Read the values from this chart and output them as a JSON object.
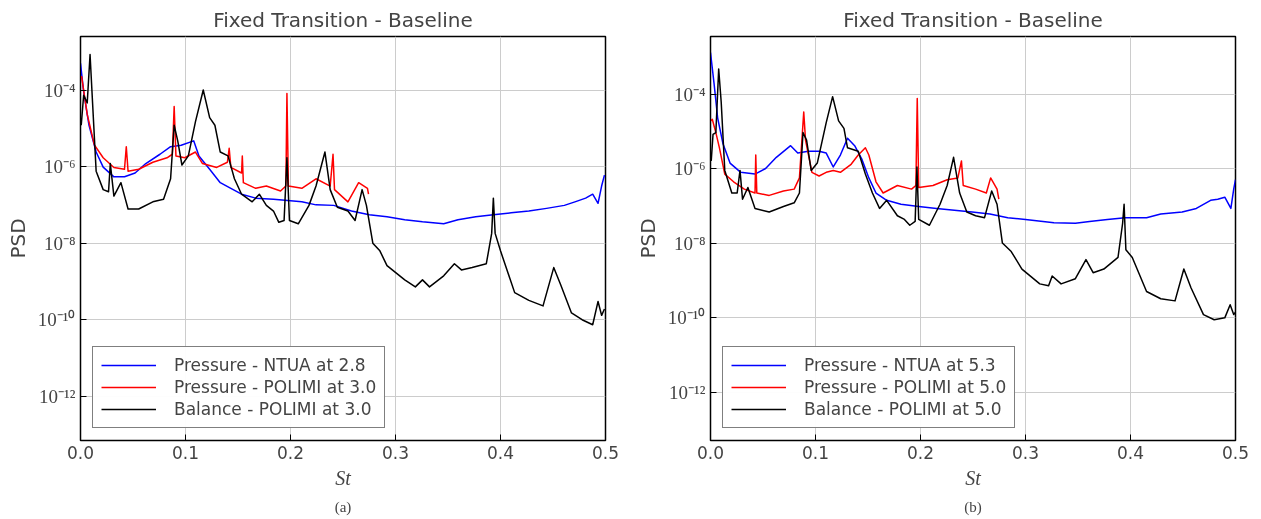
{
  "chart_data": [
    {
      "type": "line",
      "title": "Fixed Transition - Baseline",
      "xlabel": "St",
      "ylabel": "PSD",
      "annotations": [
        "(a)"
      ],
      "log": "y",
      "grid": true,
      "legend": "bottom left",
      "xlim": [
        0,
        0.5
      ],
      "xticks": [
        {
          "value": 0,
          "label": "0.0"
        },
        0.1,
        0.2,
        0.3,
        0.4,
        0.5
      ],
      "ylim": [
        7e-14,
        0.0025
      ],
      "yticks": [
        {
          "value": 1e-12,
          "label": "10⁻¹²"
        },
        {
          "value": 1e-10,
          "label": "10⁻¹⁰"
        },
        {
          "value": 1e-08,
          "label": "10⁻⁸"
        },
        {
          "value": 1e-06,
          "label": "10⁻⁶"
        },
        {
          "value": 0.0001,
          "label": "10⁻⁴"
        }
      ],
      "series": [
        {
          "name": "Pressure - NTUA at 2.8",
          "color": "#0000ff",
          "x": [
            0.0,
            0.003,
            0.0081,
            0.0149,
            0.0216,
            0.0318,
            0.0419,
            0.052,
            0.0622,
            0.0757,
            0.0858,
            0.0959,
            0.1078,
            0.1128,
            0.123,
            0.1331,
            0.1432,
            0.1534,
            0.1669,
            0.1838,
            0.1973,
            0.2108,
            0.2243,
            0.2412,
            0.2581,
            0.275,
            0.2919,
            0.3088,
            0.3257,
            0.3459,
            0.3595,
            0.3764,
            0.3932,
            0.4101,
            0.427,
            0.4439,
            0.4608,
            0.4709,
            0.4811,
            0.4878,
            0.4929,
            0.4963,
            0.499
          ],
          "values": [
            0.0005,
            9.1e-05,
            1.2e-05,
            2.4e-06,
            9.7e-07,
            5.4e-07,
            5.4e-07,
            6.8e-07,
            1.2e-06,
            2.1e-06,
            3.3e-06,
            3.6e-06,
            4.7e-06,
            1.9e-06,
            8.5e-07,
            3.8e-07,
            2.7e-07,
            1.9e-07,
            1.5e-07,
            1.4e-07,
            1.3e-07,
            1.2e-07,
            1e-07,
            9.7e-08,
            6.9e-08,
            5.5e-08,
            4.9e-08,
            4.1e-08,
            3.6e-08,
            3.2e-08,
            4.1e-08,
            4.9e-08,
            5.5e-08,
            6.2e-08,
            6.9e-08,
            8.1e-08,
            9.7e-08,
            1.2e-07,
            1.5e-07,
            1.9e-07,
            1.1e-07,
            3.1e-07,
            6e-07
          ]
        },
        {
          "name": "Pressure - POLIMI at 3.0",
          "color": "#ff0000",
          "x": [
            0.001,
            0.0064,
            0.0132,
            0.0216,
            0.0318,
            0.0419,
            0.0436,
            0.0453,
            0.0554,
            0.0689,
            0.0824,
            0.0875,
            0.0892,
            0.0909,
            0.0993,
            0.1095,
            0.1162,
            0.1297,
            0.1399,
            0.1416,
            0.1432,
            0.1534,
            0.1541,
            0.1551,
            0.1669,
            0.177,
            0.1905,
            0.1956,
            0.1966,
            0.198,
            0.2108,
            0.2243,
            0.2378,
            0.2405,
            0.2419,
            0.2547,
            0.2649,
            0.2733,
            0.2743
          ],
          "values": [
            0.00023,
            2.3e-05,
            3.7e-06,
            1.7e-06,
            9.5e-07,
            8.5e-07,
            3.3e-06,
            7.6e-07,
            8.5e-07,
            1.3e-06,
            1.7e-06,
            2.1e-06,
            3.7e-05,
            1.9e-06,
            1.7e-06,
            2.4e-06,
            1.2e-06,
            9.5e-07,
            1.3e-06,
            3e-06,
            9.5e-07,
            6.8e-07,
            1.9e-06,
            3.8e-07,
            2.7e-07,
            3.1e-07,
            2.3e-07,
            3.1e-07,
            8.1e-05,
            3.1e-07,
            2.7e-07,
            4.8e-07,
            3.1e-07,
            2.1e-06,
            2.5e-07,
            1.2e-07,
            3.8e-07,
            2.7e-07,
            1.9e-07
          ]
        },
        {
          "name": "Balance - POLIMI at 3.0",
          "color": "#000000",
          "x": [
            0.0007,
            0.003,
            0.0064,
            0.0091,
            0.0115,
            0.0149,
            0.0216,
            0.0267,
            0.0284,
            0.0318,
            0.0385,
            0.0453,
            0.0554,
            0.0689,
            0.0791,
            0.0858,
            0.0892,
            0.0926,
            0.0966,
            0.1027,
            0.1095,
            0.1169,
            0.123,
            0.128,
            0.1331,
            0.1405,
            0.1466,
            0.1534,
            0.1635,
            0.1703,
            0.177,
            0.1838,
            0.1889,
            0.1939,
            0.1966,
            0.199,
            0.2074,
            0.2176,
            0.2243,
            0.2328,
            0.2378,
            0.2446,
            0.2547,
            0.2615,
            0.2682,
            0.2723,
            0.2784,
            0.2851,
            0.2919,
            0.3088,
            0.3189,
            0.3257,
            0.3324,
            0.3459,
            0.3561,
            0.3628,
            0.373,
            0.3865,
            0.3916,
            0.3932,
            0.3949,
            0.4,
            0.4135,
            0.427,
            0.4405,
            0.4507,
            0.4574,
            0.4676,
            0.4777,
            0.4878,
            0.4929,
            0.4963,
            0.499
          ],
          "values": [
            1.2e-05,
            7.3e-05,
            4.6e-05,
            0.00085,
            4.6e-05,
            7.6e-07,
            2.5e-07,
            2.2e-07,
            1.2e-06,
            1.7e-07,
            3.8e-07,
            7.8e-08,
            7.8e-08,
            1.2e-07,
            1.4e-07,
            4.8e-07,
            1.2e-05,
            4.7e-06,
            1.1e-06,
            1.9e-06,
            1.5e-05,
            0.0001,
            1.9e-05,
            1.2e-05,
            2.4e-06,
            1.9e-06,
            4.8e-07,
            1.9e-07,
            1.2e-07,
            1.9e-07,
            9.7e-08,
            6.9e-08,
            3.5e-08,
            3.9e-08,
            1.7e-06,
            3.9e-08,
            3.2e-08,
            9.7e-08,
            3.1e-07,
            2.4e-06,
            2.5e-07,
            8.7e-08,
            6.9e-08,
            3.9e-08,
            2.5e-07,
            9.7e-08,
            1e-08,
            6.3e-09,
            2.6e-09,
            1.1e-09,
            7.2e-10,
            1.1e-09,
            7.2e-10,
            1.4e-09,
            2.9e-09,
            2e-09,
            2.3e-09,
            2.9e-09,
            1.8e-08,
            1.5e-07,
            1.8e-08,
            6.3e-09,
            5.1e-10,
            3.2e-10,
            2.3e-10,
            2.3e-09,
            8.1e-10,
            1.5e-10,
            1e-10,
            7.4e-11,
            3e-10,
            1.3e-10,
            1.9e-10
          ]
        }
      ]
    },
    {
      "type": "line",
      "title": "Fixed Transition - Baseline",
      "xlabel": "St",
      "ylabel": "PSD",
      "annotations": [
        "(b)"
      ],
      "log": "y",
      "grid": true,
      "legend": "bottom left",
      "xlim": [
        0,
        0.5
      ],
      "xticks": [
        {
          "value": 0,
          "label": "0.0"
        },
        0.1,
        0.2,
        0.3,
        0.4,
        0.5
      ],
      "ylim": [
        5e-14,
        0.0035
      ],
      "yticks": [
        {
          "value": 1e-12,
          "label": "10⁻¹²"
        },
        {
          "value": 1e-10,
          "label": "10⁻¹⁰"
        },
        {
          "value": 1e-08,
          "label": "10⁻⁸"
        },
        {
          "value": 1e-06,
          "label": "10⁻⁶"
        },
        {
          "value": 0.0001,
          "label": "10⁻⁴"
        }
      ],
      "series": [
        {
          "name": "Pressure - NTUA at 5.3",
          "color": "#0000ff",
          "x": [
            0.0,
            0.0034,
            0.0068,
            0.0119,
            0.0186,
            0.0288,
            0.0424,
            0.0525,
            0.0627,
            0.0763,
            0.0831,
            0.0932,
            0.1034,
            0.1102,
            0.1169,
            0.1237,
            0.1305,
            0.1373,
            0.1441,
            0.1508,
            0.1576,
            0.1678,
            0.1814,
            0.1983,
            0.2153,
            0.2322,
            0.2492,
            0.2661,
            0.2831,
            0.3,
            0.3271,
            0.3475,
            0.361,
            0.378,
            0.3949,
            0.4153,
            0.4288,
            0.4492,
            0.4627,
            0.4763,
            0.4831,
            0.4898,
            0.4956,
            0.4983,
            0.5
          ],
          "values": [
            0.0013,
            0.00019,
            2.3e-05,
            4.6e-06,
            1.4e-06,
            7.9e-07,
            7.1e-07,
            1e-06,
            2e-06,
            4.1e-06,
            2.6e-06,
            2.9e-06,
            2.9e-06,
            2.6e-06,
            1.1e-06,
            2.3e-06,
            6.5e-06,
            4.1e-06,
            1.8e-06,
            5.6e-07,
            2.2e-07,
            1.4e-07,
            1.1e-07,
            9.6e-08,
            8.5e-08,
            7.6e-08,
            6.8e-08,
            6e-08,
            4.8e-08,
            4.3e-08,
            3.5e-08,
            3.4e-08,
            3.8e-08,
            4.3e-08,
            4.8e-08,
            4.8e-08,
            6e-08,
            6.8e-08,
            8.5e-08,
            1.4e-07,
            1.5e-07,
            1.7e-07,
            8.5e-08,
            2.8e-07,
            5e-07
          ]
        },
        {
          "name": "Pressure - POLIMI at 5.0",
          "color": "#ff0000",
          "x": [
            0.0,
            0.0017,
            0.0051,
            0.0085,
            0.0136,
            0.022,
            0.0322,
            0.0424,
            0.0431,
            0.0441,
            0.0559,
            0.0695,
            0.0797,
            0.0847,
            0.0888,
            0.0905,
            0.0966,
            0.1034,
            0.1102,
            0.1169,
            0.1237,
            0.1339,
            0.1407,
            0.1475,
            0.1508,
            0.1576,
            0.1644,
            0.178,
            0.1915,
            0.1956,
            0.1969,
            0.1983,
            0.2119,
            0.2254,
            0.2356,
            0.239,
            0.2407,
            0.2525,
            0.2627,
            0.2668,
            0.2729,
            0.2746
          ],
          "values": [
            1.9e-05,
            2.1e-05,
            9.2e-06,
            3.6e-06,
            7.1e-07,
            4.4e-07,
            2.8e-07,
            2.2e-07,
            2.3e-06,
            2.2e-07,
            1.9e-07,
            2.5e-07,
            2.8e-07,
            5.6e-07,
            3.3e-05,
            5.8e-06,
            7.9e-07,
            6.3e-07,
            7.9e-07,
            8.9e-07,
            7.9e-07,
            1.3e-06,
            2.3e-06,
            3.6e-06,
            2.3e-06,
            4.4e-07,
            2.2e-07,
            3.5e-07,
            2.8e-07,
            3.5e-07,
            7.6e-05,
            3.1e-07,
            3.5e-07,
            5e-07,
            5.6e-07,
            1.6e-06,
            3.5e-07,
            2.8e-07,
            2.2e-07,
            5.6e-07,
            2.8e-07,
            1.5e-07
          ]
        },
        {
          "name": "Balance - POLIMI at 5.0",
          "color": "#000000",
          "x": [
            0.0007,
            0.0024,
            0.0051,
            0.0078,
            0.0102,
            0.0136,
            0.0203,
            0.0254,
            0.0281,
            0.0305,
            0.0356,
            0.0424,
            0.0559,
            0.0695,
            0.0797,
            0.0847,
            0.0881,
            0.0915,
            0.0959,
            0.1017,
            0.1102,
            0.1163,
            0.122,
            0.1271,
            0.1305,
            0.1407,
            0.1475,
            0.1542,
            0.161,
            0.1678,
            0.178,
            0.1847,
            0.1898,
            0.1949,
            0.1966,
            0.1983,
            0.2085,
            0.2186,
            0.2254,
            0.2315,
            0.2373,
            0.2441,
            0.2525,
            0.261,
            0.2678,
            0.2729,
            0.278,
            0.2864,
            0.2966,
            0.3136,
            0.322,
            0.3254,
            0.3339,
            0.3475,
            0.3576,
            0.3644,
            0.3746,
            0.3881,
            0.3925,
            0.3939,
            0.3956,
            0.4017,
            0.4153,
            0.4288,
            0.4424,
            0.4508,
            0.4576,
            0.4695,
            0.4797,
            0.4898,
            0.4949,
            0.4983,
            0.5
          ],
          "values": [
            1.6e-06,
            8.2e-06,
            9.2e-06,
            0.00047,
            6e-05,
            8.9e-07,
            2.2e-07,
            2.2e-07,
            8.9e-07,
            1.5e-07,
            3.1e-07,
            8.5e-08,
            6.8e-08,
            9.6e-08,
            1.2e-07,
            2.2e-07,
            9.2e-06,
            5.8e-06,
            8.9e-07,
            1.4e-06,
            1.7e-05,
            8.5e-05,
            1.9e-05,
            1.2e-05,
            3.6e-06,
            2.9e-06,
            7.1e-07,
            2.2e-07,
            8.5e-08,
            1.4e-07,
            5.4e-08,
            4.3e-08,
            3e-08,
            3.8e-08,
            1.1e-06,
            4.3e-08,
            3e-08,
            1.1e-07,
            3.5e-07,
            2e-06,
            2.2e-07,
            6.8e-08,
            5.4e-08,
            4.8e-08,
            2.5e-07,
            1.1e-07,
            1e-08,
            5.9e-09,
            2e-09,
            8e-10,
            7.1e-10,
            1.3e-09,
            8e-10,
            1.1e-09,
            3.6e-09,
            1.6e-09,
            2e-09,
            4.1e-09,
            3.4e-08,
            1.1e-07,
            6.6e-09,
            4.1e-09,
            5e-10,
            3.2e-10,
            2.8e-10,
            2e-09,
            6.3e-10,
            1.2e-10,
            8.7e-11,
            9.8e-11,
            2.2e-10,
            1.2e-10,
            1.4e-10
          ]
        }
      ]
    }
  ]
}
